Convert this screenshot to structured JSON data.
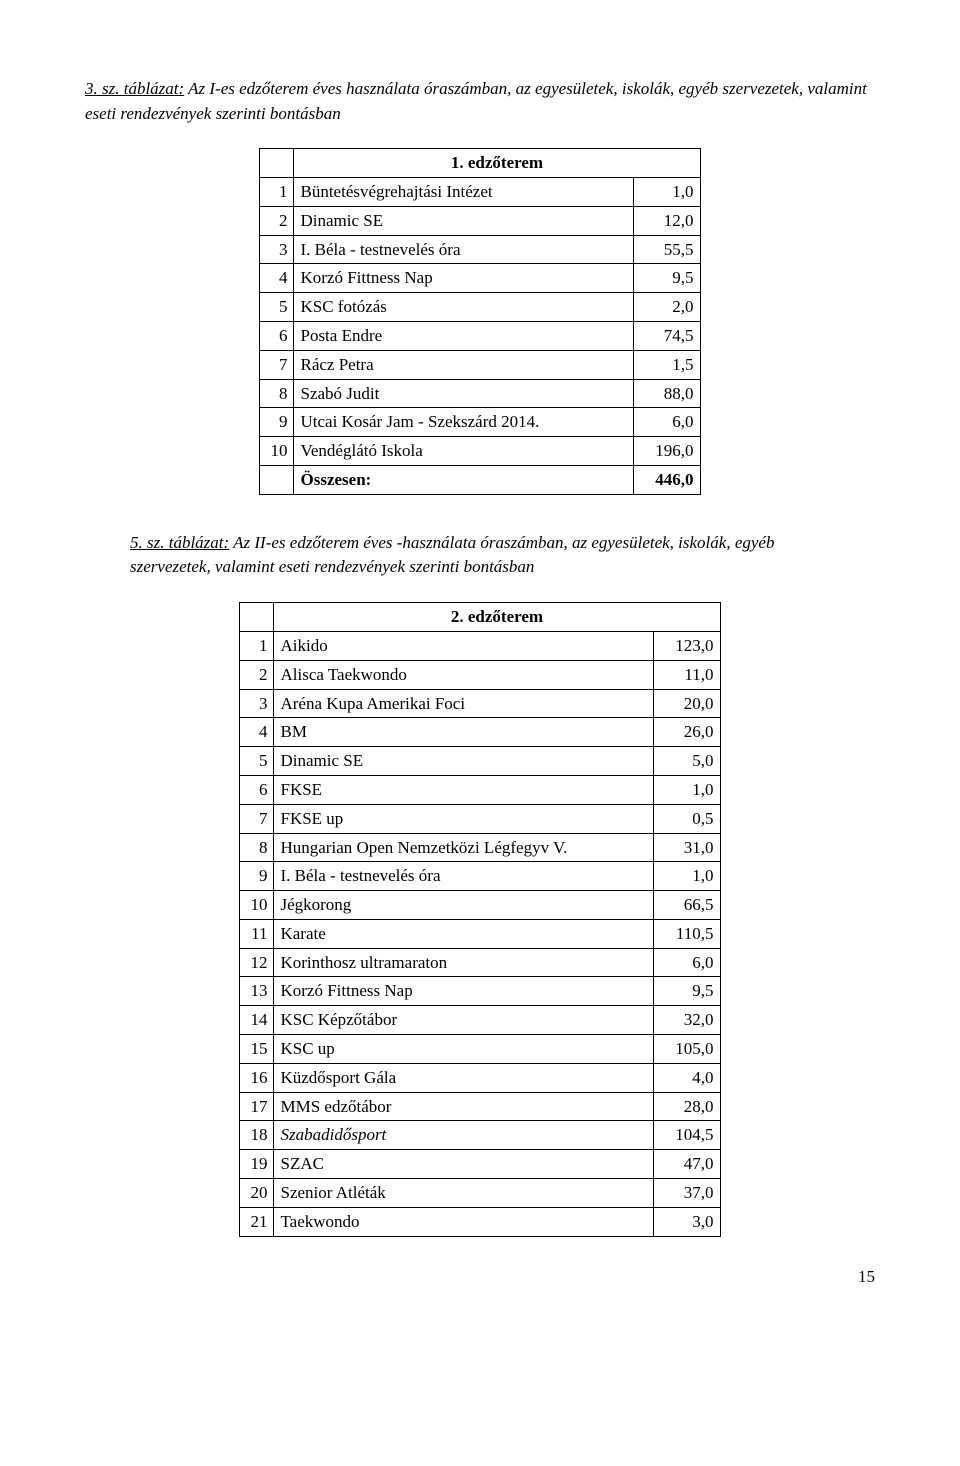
{
  "caption1": {
    "prefix": "3. sz. táblázat:",
    "rest": " Az I-es edzőterem éves használata óraszámban, az egyesületek, iskolák, egyéb szervezetek, valamint eseti rendezvények szerinti bontásban"
  },
  "table1": {
    "header": "1. edzőterem",
    "rows": [
      {
        "n": "1",
        "label": "Büntetésvégrehajtási Intézet",
        "val": "1,0"
      },
      {
        "n": "2",
        "label": "Dinamic SE",
        "val": "12,0"
      },
      {
        "n": "3",
        "label": "I. Béla - testnevelés óra",
        "val": "55,5"
      },
      {
        "n": "4",
        "label": "Korzó Fittness Nap",
        "val": "9,5"
      },
      {
        "n": "5",
        "label": "KSC fotózás",
        "val": "2,0"
      },
      {
        "n": "6",
        "label": "Posta Endre",
        "val": "74,5"
      },
      {
        "n": "7",
        "label": "Rácz Petra",
        "val": "1,5"
      },
      {
        "n": "8",
        "label": "Szabó Judit",
        "val": "88,0"
      },
      {
        "n": "9",
        "label": "Utcai Kosár Jam - Szekszárd 2014.",
        "val": "6,0"
      },
      {
        "n": "10",
        "label": "Vendéglátó Iskola",
        "val": "196,0"
      }
    ],
    "sum": {
      "label": "Összesen:",
      "val": "446,0"
    }
  },
  "caption2": {
    "prefix": "5. sz. táblázat:",
    "rest": " Az II-es edzőterem éves -használata óraszámban, az egyesületek, iskolák, egyéb szervezetek, valamint eseti rendezvények szerinti bontásban"
  },
  "table2": {
    "header": "2. edzőterem",
    "rows": [
      {
        "n": "1",
        "label": "Aikido",
        "val": "123,0",
        "italic": false
      },
      {
        "n": "2",
        "label": "Alisca Taekwondo",
        "val": "11,0",
        "italic": false
      },
      {
        "n": "3",
        "label": "Aréna Kupa Amerikai Foci",
        "val": "20,0",
        "italic": false
      },
      {
        "n": "4",
        "label": "BM",
        "val": "26,0",
        "italic": false
      },
      {
        "n": "5",
        "label": "Dinamic SE",
        "val": "5,0",
        "italic": false
      },
      {
        "n": "6",
        "label": "FKSE",
        "val": "1,0",
        "italic": false
      },
      {
        "n": "7",
        "label": "FKSE up",
        "val": "0,5",
        "italic": false
      },
      {
        "n": "8",
        "label": "Hungarian Open Nemzetközi Légfegyv V.",
        "val": "31,0",
        "italic": false
      },
      {
        "n": "9",
        "label": "I. Béla - testnevelés óra",
        "val": "1,0",
        "italic": false
      },
      {
        "n": "10",
        "label": "Jégkorong",
        "val": "66,5",
        "italic": false
      },
      {
        "n": "11",
        "label": "Karate",
        "val": "110,5",
        "italic": false
      },
      {
        "n": "12",
        "label": "Korinthosz ultramaraton",
        "val": "6,0",
        "italic": false
      },
      {
        "n": "13",
        "label": "Korzó Fittness Nap",
        "val": "9,5",
        "italic": false
      },
      {
        "n": "14",
        "label": "KSC Képzőtábor",
        "val": "32,0",
        "italic": false
      },
      {
        "n": "15",
        "label": "KSC up",
        "val": "105,0",
        "italic": false
      },
      {
        "n": "16",
        "label": "Küzdősport Gála",
        "val": "4,0",
        "italic": false
      },
      {
        "n": "17",
        "label": "MMS edzőtábor",
        "val": "28,0",
        "italic": false
      },
      {
        "n": "18",
        "label": "Szabadidősport",
        "val": "104,5",
        "italic": true
      },
      {
        "n": "19",
        "label": "SZAC",
        "val": "47,0",
        "italic": false
      },
      {
        "n": "20",
        "label": "Szenior Atléták",
        "val": "37,0",
        "italic": false
      },
      {
        "n": "21",
        "label": "Taekwondo",
        "val": "3,0",
        "italic": false
      }
    ]
  },
  "pageNumber": "15"
}
